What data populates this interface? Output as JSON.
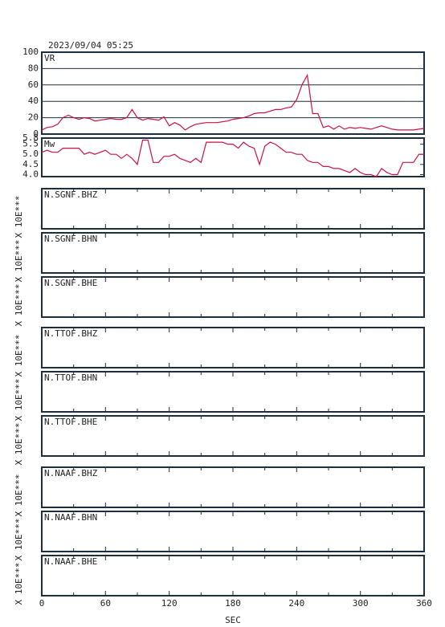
{
  "chart_data": [
    {
      "type": "line",
      "title": "2023/09/04  05:25",
      "label": "VR",
      "x": [
        0,
        5,
        10,
        15,
        20,
        25,
        30,
        35,
        40,
        45,
        50,
        55,
        60,
        65,
        70,
        75,
        80,
        85,
        90,
        95,
        100,
        105,
        110,
        115,
        120,
        125,
        130,
        135,
        140,
        145,
        150,
        155,
        160,
        165,
        170,
        175,
        180,
        185,
        190,
        195,
        200,
        205,
        210,
        215,
        220,
        225,
        230,
        235,
        240,
        245,
        250,
        255,
        260,
        265,
        270,
        275,
        280,
        285,
        290,
        295,
        300,
        305,
        310,
        315,
        320,
        325,
        330,
        335,
        340,
        345,
        350,
        355,
        360
      ],
      "values": [
        5,
        8,
        9,
        12,
        20,
        23,
        20,
        18,
        20,
        19,
        16,
        17,
        18,
        19,
        18,
        18,
        20,
        30,
        20,
        17,
        19,
        18,
        17,
        21,
        10,
        14,
        11,
        5,
        9,
        12,
        13,
        14,
        14,
        14,
        15,
        16,
        18,
        19,
        20,
        22,
        25,
        26,
        26,
        28,
        30,
        30,
        32,
        33,
        42,
        60,
        72,
        25,
        25,
        8,
        10,
        6,
        10,
        6,
        8,
        7,
        8,
        7,
        6,
        8,
        10,
        8,
        6,
        5,
        5,
        5,
        5,
        6,
        7
      ],
      "color": "#cc1144",
      "xlim": [
        0,
        360
      ],
      "ylim": [
        0,
        100
      ],
      "yticks": [
        0,
        20,
        40,
        60,
        80,
        100
      ],
      "grid": true
    },
    {
      "type": "line",
      "label": "Mw",
      "x": [
        0,
        5,
        10,
        15,
        20,
        25,
        30,
        35,
        40,
        45,
        50,
        55,
        60,
        65,
        70,
        75,
        80,
        85,
        90,
        95,
        100,
        105,
        110,
        115,
        120,
        125,
        130,
        135,
        140,
        145,
        150,
        155,
        160,
        165,
        170,
        175,
        180,
        185,
        190,
        195,
        200,
        205,
        210,
        215,
        220,
        225,
        230,
        235,
        240,
        245,
        250,
        255,
        260,
        265,
        270,
        275,
        280,
        285,
        290,
        295,
        300,
        305,
        310,
        315,
        320,
        325,
        330,
        335,
        340,
        345,
        350,
        355,
        360
      ],
      "values": [
        5.1,
        5.2,
        5.1,
        5.1,
        5.3,
        5.3,
        5.3,
        5.3,
        5.0,
        5.1,
        5.0,
        5.1,
        5.2,
        5.0,
        5.0,
        4.8,
        5.0,
        4.8,
        4.5,
        5.7,
        5.7,
        4.6,
        4.6,
        4.9,
        4.9,
        5.0,
        4.8,
        4.7,
        4.6,
        4.8,
        4.6,
        5.6,
        5.6,
        5.6,
        5.6,
        5.5,
        5.5,
        5.3,
        5.6,
        5.4,
        5.3,
        4.5,
        5.4,
        5.6,
        5.5,
        5.3,
        5.1,
        5.1,
        5.0,
        5.0,
        4.7,
        4.6,
        4.6,
        4.4,
        4.4,
        4.3,
        4.3,
        4.2,
        4.1,
        4.3,
        4.1,
        4.0,
        4.0,
        3.9,
        4.3,
        4.1,
        4.0,
        4.0,
        4.6,
        4.6,
        4.6,
        5.0,
        5.0
      ],
      "color": "#cc1144",
      "xlim": [
        0,
        360
      ],
      "ylim": [
        3.9,
        5.8
      ],
      "yticks": [
        {
          "value": 4,
          "label": "4.0"
        },
        4.5,
        {
          "value": 5,
          "label": "5.0"
        },
        5.5,
        5.8
      ],
      "grid": false
    },
    {
      "type": "seismogram",
      "panels": [
        {
          "label": "N.SGNF.BHZ",
          "scale": "X 10E***"
        },
        {
          "label": "N.SGNF.BHN",
          "scale": "X 10E***"
        },
        {
          "label": "N.SGNF.BHE",
          "scale": "X 10E***"
        },
        {
          "label": "N.TTOF.BHZ",
          "scale": "X 10E***"
        },
        {
          "label": "N.TTOF.BHN",
          "scale": "X 10E***"
        },
        {
          "label": "N.TTOF.BHE",
          "scale": "X 10E***"
        },
        {
          "label": "N.NAAF.BHZ",
          "scale": "X 10E***"
        },
        {
          "label": "N.NAAF.BHN",
          "scale": "X 10E***"
        },
        {
          "label": "N.NAAF.BHE",
          "scale": "X 10E***"
        }
      ],
      "xlim": [
        0,
        360
      ],
      "xticks": [
        0,
        60,
        120,
        180,
        240,
        300,
        360
      ],
      "xminorticks": [
        30,
        90,
        150,
        210,
        270,
        330
      ],
      "xlabel": "SEC"
    }
  ]
}
